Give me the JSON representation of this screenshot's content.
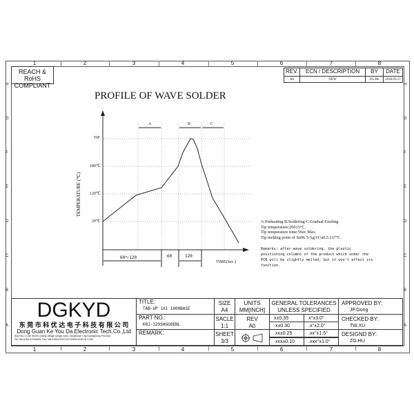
{
  "border": {
    "columns": [
      "1",
      "2",
      "3",
      "4",
      "5",
      "6",
      "7",
      "8"
    ],
    "rows": [
      "H",
      "G",
      "F",
      "E",
      "D",
      "C",
      "B",
      "A"
    ]
  },
  "compliance": [
    "REACH & RoHS",
    "COMPLIANT"
  ],
  "revision": {
    "headers": [
      "REV.",
      "ECN / DESCRIPTION",
      "BY",
      "DATE"
    ],
    "row": [
      "A0",
      "NEW",
      "ZG.Hu",
      "2018.03.17"
    ]
  },
  "drawing": {
    "title": "PROFILE OF WAVE SOLDER",
    "ylabel": "TEMPERATURE (℃)",
    "xlabel": "TIME(Sec.)",
    "y_ticks": [
      "TiP",
      "180℃",
      "120℃",
      "20℃"
    ],
    "zones": [
      "A",
      "B",
      "C"
    ],
    "durations": [
      "60～120",
      "60",
      "120"
    ]
  },
  "notes": {
    "lines": [
      "A.Preheating  B.Soldering  C.Gradual Cooling",
      "Tip temperature:260±5°C.",
      "Tip temperature time:5Sec Max.",
      "Tip melting point of Sn96.5/Ag3/Cu0.5:217°C."
    ],
    "remarks": [
      "Remarks: after wave soldering, the plastic",
      "positioning columns of the product  which under the",
      "PCB will be slightly melted, but it won't affect its",
      "function."
    ]
  },
  "company": {
    "logo": "DGKYD",
    "name_cn": "东 莞 市 科 优 达 电 子 科 技 有 限 公 司",
    "name_en": "Dong Guan Ke You Da Electronic Tech.Co.,Ltd",
    "address": "ADD:No.1 Lihe Street,Lihang Village,Qingxi town, DongGuan City,GuangDong Province",
    "contact": "Tel:+86-0769-87334608; Fax:+86-0769-87047129  WWW.DGKYD.COM"
  },
  "titleblock": {
    "title_label": "TITLE:",
    "title": "TAB-UP 1X1 1000BASE",
    "part_label": "PART NO.:",
    "part": "KRJ-329SHGG0ENL",
    "remark_label": "REMARK:",
    "size_label": "SIZE",
    "size": "A4",
    "units_label": "UNITS",
    "units": "MM[INCH]",
    "scale_label": "SACLE",
    "scale": "1:1",
    "rev_label": "REV",
    "rev": "A0",
    "sheet_label": "SHEET",
    "sheet": "3/3",
    "tol_title": [
      "GENERAL TOLERANCES",
      "UNLESS SPECIFIED"
    ],
    "tolerances": [
      [
        "x±0.35",
        "x°±3.0°"
      ],
      [
        ".x±0.30",
        ".x°±2.0°"
      ],
      [
        ".xx±0.25",
        ".xx°±1.5°"
      ],
      [
        ".xxx±0.10",
        ".xxx°±1.0°"
      ]
    ],
    "approved_label": "APPROVED BY:",
    "approved": "JP.Gong",
    "checked_label": "CHECKED BY:",
    "checked": "TW.XU",
    "designed_label": "DESIGND BY:",
    "designed": "ZG.HU"
  }
}
